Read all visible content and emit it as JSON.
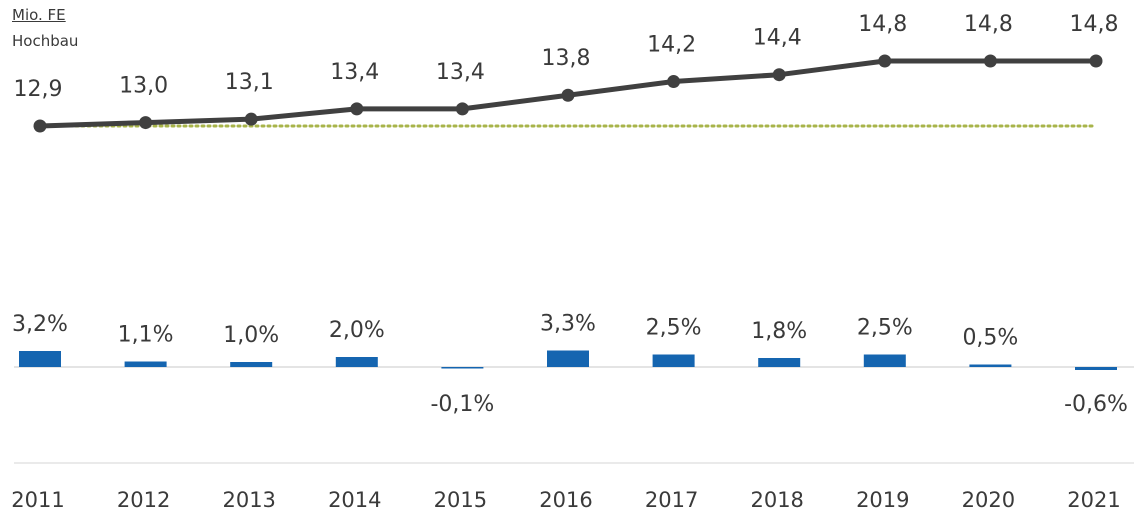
{
  "chart_data": {
    "type": "line+bar",
    "unit_label": "Mio. FE",
    "series_label": "Hochbau",
    "categories": [
      "2011",
      "2012",
      "2013",
      "2014",
      "2015",
      "2016",
      "2017",
      "2018",
      "2019",
      "2020",
      "2021"
    ],
    "line_series": {
      "values": [
        12.9,
        13.0,
        13.1,
        13.4,
        13.4,
        13.8,
        14.2,
        14.4,
        14.8,
        14.8,
        14.8
      ],
      "labels": [
        "12,9",
        "13,0",
        "13,1",
        "13,4",
        "13,4",
        "13,8",
        "14,2",
        "14,4",
        "14,8",
        "14,8",
        "14,8"
      ],
      "color": "#404040",
      "reference_value": 12.9,
      "reference_color": "#a8b44a"
    },
    "bar_series": {
      "values": [
        3.2,
        1.1,
        1.0,
        2.0,
        -0.1,
        3.3,
        2.5,
        1.8,
        2.5,
        0.5,
        -0.6
      ],
      "labels": [
        "3,2%",
        "1,1%",
        "1,0%",
        "2,0%",
        "-0,1%",
        "3,3%",
        "2,5%",
        "1,8%",
        "2,5%",
        "0,5%",
        "-0,6%"
      ],
      "color": "#1565b0"
    }
  }
}
